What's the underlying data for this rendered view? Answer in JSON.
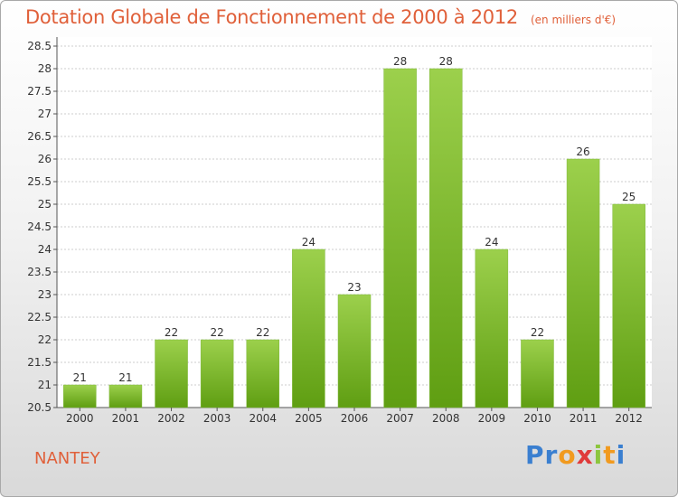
{
  "header": {
    "title": "Dotation Globale de Fonctionnement de 2000 à 2012",
    "subtitle": "(en milliers d'€)"
  },
  "footer": {
    "town": "NANTEY",
    "logo_text": "Proxiti"
  },
  "colors": {
    "bar_light": "#9cd04c",
    "bar_dark": "#5f9e12",
    "title": "#e0603a",
    "grid": "#cccccc"
  },
  "chart_data": {
    "type": "bar",
    "title": "Dotation Globale de Fonctionnement de 2000 à 2012",
    "subtitle": "(en milliers d'€)",
    "categories": [
      "2000",
      "2001",
      "2002",
      "2003",
      "2004",
      "2005",
      "2006",
      "2007",
      "2008",
      "2009",
      "2010",
      "2011",
      "2012"
    ],
    "values": [
      21,
      21,
      22,
      22,
      22,
      24,
      23,
      28,
      28,
      24,
      22,
      26,
      25
    ],
    "value_labels": [
      "21",
      "21",
      "22",
      "22",
      "22",
      "24",
      "23",
      "28",
      "28",
      "24",
      "22",
      "26",
      "25"
    ],
    "ylim": [
      20.5,
      28.5
    ],
    "yticks": [
      "20.5",
      "21",
      "21.5",
      "22",
      "22.5",
      "23",
      "23.5",
      "24",
      "24.5",
      "25",
      "25.5",
      "26",
      "26.5",
      "27",
      "27.5",
      "28",
      "28.5"
    ],
    "grid": true,
    "legend": "none"
  }
}
